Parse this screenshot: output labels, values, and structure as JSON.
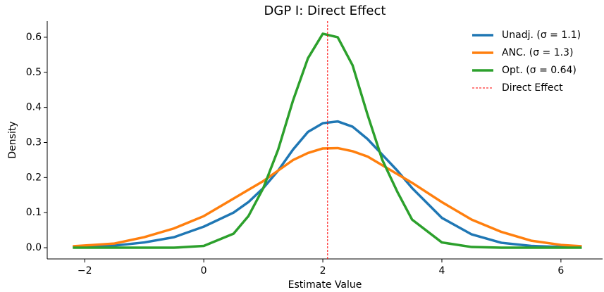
{
  "chart_data": {
    "type": "line",
    "title": "DGP I: Direct Effect",
    "xlabel": "Estimate Value",
    "ylabel": "Density",
    "x": [
      -2.2,
      -1.5,
      -1,
      -0.5,
      0,
      0.5,
      0.75,
      1,
      1.25,
      1.5,
      1.75,
      2,
      2.25,
      2.5,
      2.75,
      3,
      3.25,
      3.5,
      4,
      4.5,
      5,
      5.5,
      6,
      6.35
    ],
    "series": [
      {
        "name": "Unadj. (σ = 1.1)",
        "color": "#1f77b4",
        "values": [
          0.002,
          0.006,
          0.015,
          0.03,
          0.06,
          0.1,
          0.13,
          0.17,
          0.22,
          0.28,
          0.33,
          0.355,
          0.36,
          0.345,
          0.31,
          0.265,
          0.22,
          0.17,
          0.085,
          0.038,
          0.014,
          0.005,
          0.002,
          0.001
        ]
      },
      {
        "name": "ANC. (σ = 1.3)",
        "color": "#ff7f0e",
        "values": [
          0.004,
          0.012,
          0.03,
          0.055,
          0.09,
          0.14,
          0.165,
          0.19,
          0.22,
          0.25,
          0.27,
          0.283,
          0.284,
          0.275,
          0.26,
          0.235,
          0.21,
          0.185,
          0.13,
          0.08,
          0.045,
          0.02,
          0.008,
          0.004
        ]
      },
      {
        "name": "Opt. (σ = 0.64)",
        "color": "#2ca02c",
        "values": [
          0,
          0,
          0,
          0,
          0.005,
          0.04,
          0.09,
          0.17,
          0.28,
          0.42,
          0.54,
          0.61,
          0.6,
          0.52,
          0.38,
          0.25,
          0.16,
          0.08,
          0.015,
          0.002,
          0,
          0,
          0,
          0
        ]
      }
    ],
    "vline": {
      "name": "Direct Effect",
      "x": 2.08,
      "color": "#ff0000"
    },
    "xlim": [
      -2.63,
      6.7
    ],
    "ylim": [
      -0.032,
      0.646
    ],
    "xticks": [
      {
        "value": -2,
        "label": "−2"
      },
      0,
      2,
      4,
      6
    ],
    "yticks": [
      {
        "value": 0,
        "label": "0.0"
      },
      0.1,
      0.2,
      0.3,
      0.4,
      0.5,
      0.6
    ],
    "legend": "upper right"
  }
}
